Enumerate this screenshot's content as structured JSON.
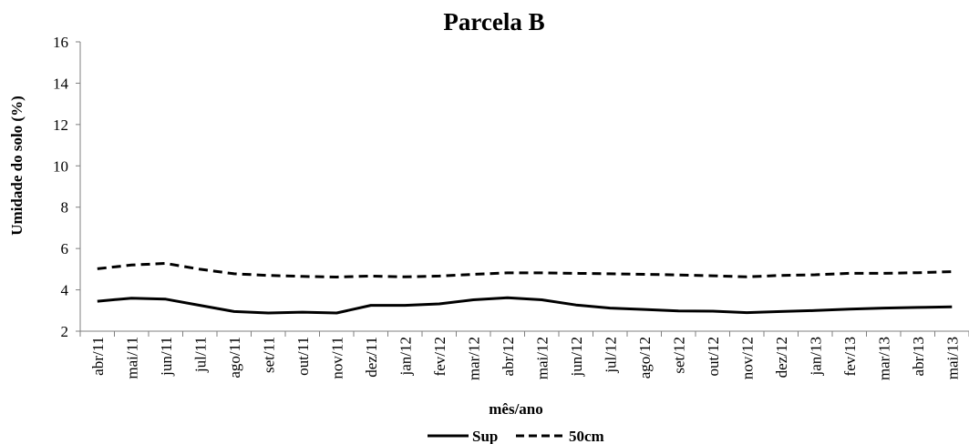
{
  "chart_data": {
    "type": "line",
    "title": "Parcela B",
    "xlabel": "mês/ano",
    "ylabel": "Umidade do solo (%)",
    "ylim": [
      2,
      16
    ],
    "yticks": [
      2,
      4,
      6,
      8,
      10,
      12,
      14,
      16
    ],
    "grid": false,
    "legend_position": "bottom",
    "categories": [
      "abr/11",
      "mai/11",
      "jun/11",
      "jul/11",
      "ago/11",
      "set/11",
      "out/11",
      "nov/11",
      "dez/11",
      "jan/12",
      "fev/12",
      "mar/12",
      "abr/12",
      "mai/12",
      "jun/12",
      "jul/12",
      "ago/12",
      "set/12",
      "out/12",
      "nov/12",
      "dez/12",
      "jan/13",
      "fev/13",
      "mar/13",
      "abr/13",
      "mai/13"
    ],
    "series": [
      {
        "name": "Sup",
        "style": "solid",
        "color": "#000000",
        "values": [
          3.45,
          3.6,
          3.55,
          3.25,
          2.95,
          2.88,
          2.92,
          2.88,
          3.25,
          3.25,
          3.32,
          3.52,
          3.62,
          3.52,
          3.27,
          3.12,
          3.05,
          2.98,
          2.97,
          2.9,
          2.95,
          3.0,
          3.07,
          3.12,
          3.15,
          3.18
        ]
      },
      {
        "name": "50cm",
        "style": "dashed",
        "color": "#000000",
        "values": [
          5.02,
          5.2,
          5.28,
          5.0,
          4.78,
          4.7,
          4.65,
          4.62,
          4.67,
          4.63,
          4.67,
          4.75,
          4.82,
          4.82,
          4.8,
          4.78,
          4.75,
          4.72,
          4.68,
          4.63,
          4.7,
          4.73,
          4.8,
          4.8,
          4.83,
          4.88
        ]
      }
    ]
  }
}
